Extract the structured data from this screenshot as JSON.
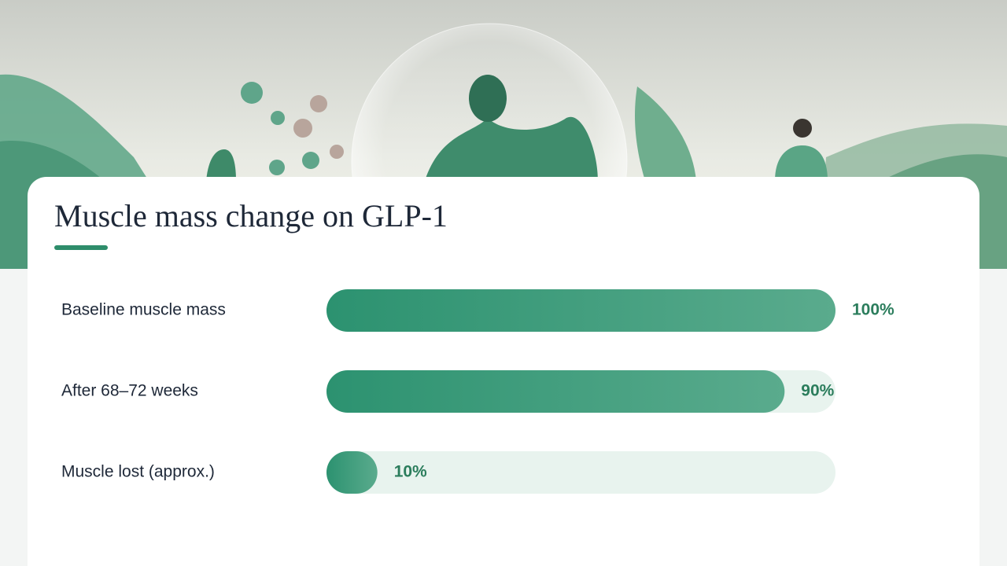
{
  "chart_data": {
    "type": "bar",
    "orientation": "horizontal",
    "title": "Muscle mass change on GLP-1",
    "categories": [
      "Baseline muscle mass",
      "After 68–72 weeks",
      "Muscle lost (approx.)"
    ],
    "values": [
      100,
      90,
      10
    ],
    "value_labels": [
      "100%",
      "90%",
      "10%"
    ],
    "xlim": [
      0,
      100
    ],
    "color": "#3a9a76"
  }
}
